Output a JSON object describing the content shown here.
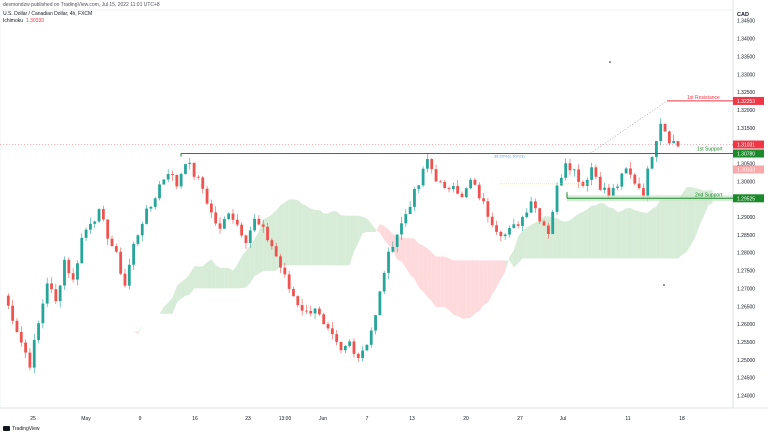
{
  "header": {
    "top_line": "desmondzw published on TradingView.com, Jul 15, 2022 11:01 UTC+8",
    "symbol": "U.S. Dollar / Canadian Dollar, 4h, FXCM",
    "indicator": "Ichimoku",
    "indicator_value": "1.30333"
  },
  "currency": "CAD",
  "footer": {
    "brand": "TradingView"
  },
  "colors": {
    "up": "#26a69a",
    "down": "#ef5350",
    "line": "#1b8a2a",
    "resistance": "#f23645",
    "cloud_green": "#c8e6c9",
    "cloud_red": "#ffcdd2"
  },
  "chart_data": {
    "type": "candlestick",
    "ylim": [
      1.2365,
      1.348
    ],
    "price_ticks": [
      "1.34500",
      "1.34000",
      "1.33500",
      "1.33000",
      "1.32500",
      "1.32000",
      "1.31500",
      "1.31000",
      "1.30500",
      "1.30000",
      "1.29500",
      "1.29000",
      "1.28500",
      "1.28000",
      "1.27500",
      "1.27000",
      "1.26500",
      "1.26000",
      "1.25500",
      "1.25000",
      "1.24500",
      "1.24000"
    ],
    "x_labels": [
      "25",
      "May",
      "9",
      "16",
      "23",
      "13:00",
      "Jun",
      "7",
      "13",
      "20",
      "27",
      "Jul",
      "11",
      "18"
    ],
    "levels": [
      {
        "name": "1st Resistance",
        "value": "1.32253",
        "kind": "resistance"
      },
      {
        "name": "1st Support",
        "value": "1.30780",
        "kind": "support"
      },
      {
        "name": "2nd Support",
        "value": "1.29525",
        "kind": "support"
      }
    ],
    "price_badges": [
      {
        "value": "1.31031",
        "kind": "current"
      },
      {
        "value": "1.30333",
        "kind": "indicator"
      }
    ],
    "fib_label": "38.20%(1.30723)",
    "price_path": [
      [
        1.268,
        0
      ],
      [
        1.262,
        2
      ],
      [
        1.255,
        4
      ],
      [
        1.249,
        6
      ],
      [
        1.26,
        8
      ],
      [
        1.272,
        10
      ],
      [
        1.266,
        12
      ],
      [
        1.278,
        14
      ],
      [
        1.272,
        16
      ],
      [
        1.284,
        18
      ],
      [
        1.289,
        20
      ],
      [
        1.291,
        22
      ],
      [
        1.285,
        24
      ],
      [
        1.279,
        26
      ],
      [
        1.271,
        28
      ],
      [
        1.282,
        30
      ],
      [
        1.289,
        32
      ],
      [
        1.293,
        34
      ],
      [
        1.299,
        36
      ],
      [
        1.303,
        38
      ],
      [
        1.299,
        40
      ],
      [
        1.306,
        42
      ],
      [
        1.302,
        44
      ],
      [
        1.298,
        46
      ],
      [
        1.291,
        48
      ],
      [
        1.286,
        50
      ],
      [
        1.292,
        52
      ],
      [
        1.288,
        54
      ],
      [
        1.284,
        56
      ],
      [
        1.289,
        58
      ],
      [
        1.286,
        60
      ],
      [
        1.282,
        62
      ],
      [
        1.276,
        64
      ],
      [
        1.27,
        66
      ],
      [
        1.266,
        68
      ],
      [
        1.263,
        70
      ],
      [
        1.265,
        72
      ],
      [
        1.259,
        74
      ],
      [
        1.256,
        76
      ],
      [
        1.252,
        78
      ],
      [
        1.255,
        80
      ],
      [
        1.251,
        82
      ],
      [
        1.255,
        84
      ],
      [
        1.262,
        86
      ],
      [
        1.275,
        88
      ],
      [
        1.283,
        90
      ],
      [
        1.288,
        92
      ],
      [
        1.294,
        94
      ],
      [
        1.299,
        96
      ],
      [
        1.306,
        98
      ],
      [
        1.301,
        100
      ],
      [
        1.297,
        102
      ],
      [
        1.3,
        104
      ],
      [
        1.295,
        106
      ],
      [
        1.3,
        108
      ],
      [
        1.296,
        110
      ],
      [
        1.291,
        112
      ],
      [
        1.287,
        114
      ],
      [
        1.285,
        116
      ],
      [
        1.287,
        118
      ],
      [
        1.29,
        120
      ],
      [
        1.295,
        122
      ],
      [
        1.29,
        124
      ],
      [
        1.286,
        126
      ],
      [
        1.298,
        128
      ],
      [
        1.306,
        130
      ],
      [
        1.303,
        132
      ],
      [
        1.299,
        134
      ],
      [
        1.304,
        136
      ],
      [
        1.299,
        138
      ],
      [
        1.296,
        140
      ],
      [
        1.299,
        142
      ],
      [
        1.303,
        144
      ],
      [
        1.3,
        146
      ],
      [
        1.297,
        148
      ],
      [
        1.308,
        150
      ],
      [
        1.317,
        152
      ],
      [
        1.312,
        154
      ],
      [
        1.31,
        156
      ]
    ]
  }
}
